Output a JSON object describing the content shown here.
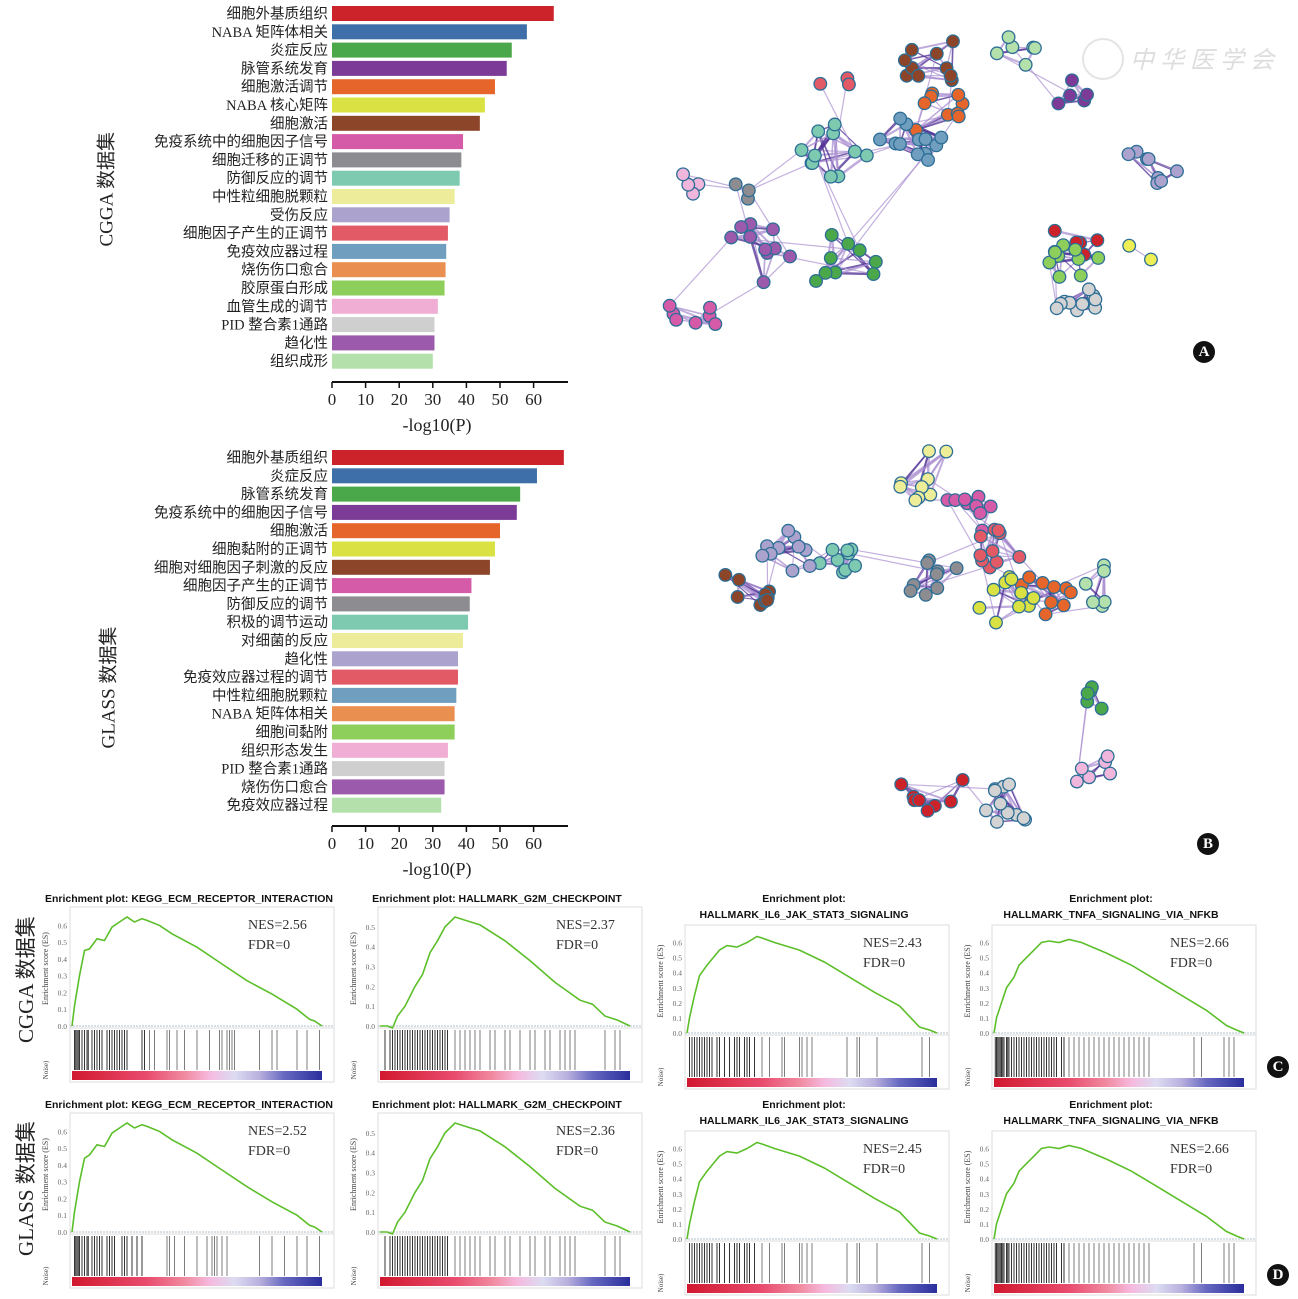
{
  "panels": {
    "A": "A",
    "B": "B",
    "C": "C",
    "D": "D"
  },
  "row_labels": {
    "cgga": "CGGA 数据集",
    "glass": "GLASS 数据集"
  },
  "watermark": "中华医学会",
  "colors": {
    "edge_light": "#a98fd0",
    "edge_dark": "#4a2a90",
    "node_stroke": "#2d6e96",
    "es_line": "#5cbf2a",
    "hit_line": "#111111"
  },
  "chart_data": [
    {
      "id": "bar-cgga",
      "type": "bar",
      "orientation": "horizontal",
      "title": "",
      "xlabel": "-log10(P)",
      "ylabel": "CGGA 数据集",
      "xlim": [
        0,
        68
      ],
      "xticks": [
        0,
        10,
        20,
        30,
        40,
        50,
        60
      ],
      "categories": [
        "细胞外基质组织",
        "NABA 矩阵体相关",
        "炎症反应",
        "脉管系统发育",
        "细胞激活调节",
        "NABA 核心矩阵",
        "细胞激活",
        "免疫系统中的细胞因子信号",
        "细胞迁移的正调节",
        "防御反应的调节",
        "中性粒细胞脱颗粒",
        "受伤反应",
        "细胞因子产生的正调节",
        "免疫效应器过程",
        "烧伤伤口愈合",
        "胶原蛋白形成",
        "血管生成的调节",
        "PID 整合素1通路",
        "趋化性",
        "组织成形"
      ],
      "values": [
        66,
        58,
        53.5,
        52,
        48.5,
        45.5,
        44,
        39,
        38.5,
        38,
        36.5,
        35,
        34.5,
        34,
        33.8,
        33.5,
        31.5,
        30.5,
        30.5,
        30
      ],
      "colors": [
        "#cc2229",
        "#3e6fa8",
        "#4ba84a",
        "#7b3b96",
        "#e5652a",
        "#d9e242",
        "#8c4528",
        "#d55ba8",
        "#8d8c90",
        "#7ecab1",
        "#ecec9a",
        "#aba3ce",
        "#e25a66",
        "#6f9ebf",
        "#e98f50",
        "#8ecf5c",
        "#f0aed4",
        "#cfcfcf",
        "#9b5aab",
        "#b4e0ab"
      ]
    },
    {
      "id": "bar-glass",
      "type": "bar",
      "orientation": "horizontal",
      "title": "",
      "xlabel": "-log10(P)",
      "ylabel": "GLASS 数据集",
      "xlim": [
        0,
        68
      ],
      "xticks": [
        0,
        10,
        20,
        30,
        40,
        50,
        60
      ],
      "categories": [
        "细胞外基质组织",
        "炎症反应",
        "脉管系统发育",
        "免疫系统中的细胞因子信号",
        "细胞激活",
        "细胞黏附的正调节",
        "细胞对细胞因子刺激的反应",
        "细胞因子产生的正调节",
        "防御反应的调节",
        "积极的调节运动",
        "对细菌的反应",
        "趋化性",
        "免疫效应器过程的调节",
        "中性粒细胞脱颗粒",
        "NABA 矩阵体相关",
        "细胞间黏附",
        "组织形态发生",
        "PID 整合素1通路",
        "烧伤伤口愈合",
        "免疫效应器过程"
      ],
      "values": [
        69,
        61,
        56,
        55,
        50,
        48.5,
        47,
        41.5,
        41,
        40.5,
        39,
        37.5,
        37.5,
        37,
        36.5,
        36.5,
        34.5,
        33.5,
        33.5,
        32.5
      ],
      "colors": [
        "#cc2229",
        "#3e6fa8",
        "#4ba84a",
        "#7b3b96",
        "#e5652a",
        "#d9e242",
        "#8c4528",
        "#d55ba8",
        "#8d8c90",
        "#7ecab1",
        "#ecec9a",
        "#aba3ce",
        "#e25a66",
        "#6f9ebf",
        "#e98f50",
        "#8ecf5c",
        "#f0aed4",
        "#cfcfcf",
        "#9b5aab",
        "#b4e0ab"
      ]
    },
    {
      "id": "gsea-cgga-ecm",
      "type": "line",
      "row": "cgga",
      "title_lines": [
        "Enrichment plot: KEGG_ECM_RECEPTOR_INTERACTION"
      ],
      "ylabel": "Enrichment score (ES)",
      "bottom_label": "Noise)",
      "ylim": [
        0,
        0.65
      ],
      "yticks": [
        "0.0",
        "0.1",
        "0.2",
        "0.3",
        "0.4",
        "0.5",
        "0.6"
      ],
      "annotation": {
        "nes": "NES=2.56",
        "fdr": "FDR=0"
      },
      "x": [
        0,
        0.01,
        0.03,
        0.05,
        0.07,
        0.1,
        0.13,
        0.16,
        0.19,
        0.22,
        0.25,
        0.28,
        0.3,
        0.35,
        0.4,
        0.5,
        0.6,
        0.7,
        0.8,
        0.9,
        0.95,
        0.97,
        1.0
      ],
      "es": [
        0,
        0.12,
        0.3,
        0.45,
        0.46,
        0.52,
        0.51,
        0.59,
        0.62,
        0.65,
        0.62,
        0.64,
        0.63,
        0.6,
        0.55,
        0.47,
        0.37,
        0.27,
        0.19,
        0.1,
        0.04,
        0.03,
        0
      ],
      "hits": [
        0.01,
        0.015,
        0.02,
        0.025,
        0.03,
        0.04,
        0.05,
        0.06,
        0.065,
        0.08,
        0.09,
        0.1,
        0.11,
        0.12,
        0.14,
        0.15,
        0.16,
        0.17,
        0.18,
        0.19,
        0.2,
        0.21,
        0.22,
        0.28,
        0.29,
        0.31,
        0.33,
        0.38,
        0.39,
        0.42,
        0.45,
        0.5,
        0.55,
        0.59,
        0.6,
        0.62,
        0.63,
        0.64,
        0.65,
        0.75,
        0.8,
        0.82,
        0.9,
        0.94,
        0.99
      ]
    },
    {
      "id": "gsea-cgga-g2m",
      "type": "line",
      "row": "cgga",
      "title_lines": [
        "Enrichment plot: HALLMARK_G2M_CHECKPOINT"
      ],
      "ylabel": "Enrichment score (ES)",
      "bottom_label": "Noise)",
      "ylim": [
        0,
        0.55
      ],
      "yticks": [
        "0.0",
        "0.1",
        "0.2",
        "0.3",
        "0.4",
        "0.5"
      ],
      "annotation": {
        "nes": "NES=2.37",
        "fdr": "FDR=0"
      },
      "x": [
        0,
        0.03,
        0.05,
        0.07,
        0.1,
        0.14,
        0.17,
        0.2,
        0.23,
        0.26,
        0.3,
        0.35,
        0.4,
        0.5,
        0.6,
        0.7,
        0.8,
        0.85,
        0.9,
        0.95,
        1.0
      ],
      "es": [
        0,
        0,
        -0.01,
        0.05,
        0.1,
        0.2,
        0.26,
        0.37,
        0.43,
        0.5,
        0.55,
        0.53,
        0.51,
        0.43,
        0.33,
        0.22,
        0.13,
        0.11,
        0.05,
        0.03,
        0
      ],
      "hits": [
        0.02,
        0.04,
        0.05,
        0.06,
        0.07,
        0.08,
        0.09,
        0.1,
        0.11,
        0.12,
        0.13,
        0.14,
        0.15,
        0.16,
        0.17,
        0.18,
        0.19,
        0.2,
        0.21,
        0.22,
        0.23,
        0.24,
        0.25,
        0.26,
        0.27,
        0.3,
        0.32,
        0.34,
        0.36,
        0.38,
        0.4,
        0.44,
        0.46,
        0.5,
        0.52,
        0.56,
        0.6,
        0.62,
        0.66,
        0.68,
        0.72,
        0.74,
        0.76,
        0.78,
        0.9,
        0.94,
        0.96
      ]
    },
    {
      "id": "gsea-cgga-il6",
      "type": "line",
      "row": "cgga",
      "title_lines": [
        "Enrichment plot:",
        "HALLMARK_IL6_JAK_STAT3_SIGNALING"
      ],
      "ylabel": "Enrichment score (ES)",
      "bottom_label": "Noise)",
      "ylim": [
        0,
        0.65
      ],
      "yticks": [
        "0.0",
        "0.1",
        "0.2",
        "0.3",
        "0.4",
        "0.5",
        "0.6"
      ],
      "annotation": {
        "nes": "NES=2.43",
        "fdr": "FDR=0"
      },
      "x": [
        0,
        0.01,
        0.03,
        0.05,
        0.08,
        0.1,
        0.13,
        0.16,
        0.2,
        0.24,
        0.28,
        0.3,
        0.35,
        0.45,
        0.55,
        0.65,
        0.75,
        0.85,
        0.93,
        0.97,
        1.0
      ],
      "es": [
        0,
        0.1,
        0.25,
        0.38,
        0.45,
        0.49,
        0.55,
        0.58,
        0.57,
        0.6,
        0.64,
        0.63,
        0.6,
        0.55,
        0.47,
        0.37,
        0.27,
        0.18,
        0.04,
        0.02,
        0
      ],
      "hits": [
        0.01,
        0.02,
        0.03,
        0.04,
        0.05,
        0.06,
        0.07,
        0.08,
        0.09,
        0.1,
        0.12,
        0.13,
        0.15,
        0.17,
        0.19,
        0.2,
        0.21,
        0.23,
        0.24,
        0.25,
        0.27,
        0.3,
        0.33,
        0.38,
        0.39,
        0.45,
        0.46,
        0.48,
        0.5,
        0.64,
        0.68,
        0.69,
        0.76,
        0.94,
        0.97
      ]
    },
    {
      "id": "gsea-cgga-tnfa",
      "type": "line",
      "row": "cgga",
      "title_lines": [
        "Enrichment plot:",
        "HALLMARK_TNFA_SIGNALING_VIA_NFKB"
      ],
      "ylabel": "Enrichment score (ES)",
      "bottom_label": "Noise)",
      "ylim": [
        0,
        0.65
      ],
      "yticks": [
        "0.0",
        "0.1",
        "0.2",
        "0.3",
        "0.4",
        "0.5",
        "0.6"
      ],
      "annotation": {
        "nes": "NES=2.66",
        "fdr": "FDR=0"
      },
      "x": [
        0,
        0.01,
        0.03,
        0.05,
        0.08,
        0.1,
        0.13,
        0.16,
        0.19,
        0.22,
        0.26,
        0.3,
        0.35,
        0.45,
        0.55,
        0.65,
        0.75,
        0.85,
        0.93,
        0.97,
        1.0
      ],
      "es": [
        0,
        0.1,
        0.2,
        0.3,
        0.37,
        0.45,
        0.5,
        0.55,
        0.6,
        0.61,
        0.6,
        0.62,
        0.6,
        0.53,
        0.45,
        0.35,
        0.25,
        0.15,
        0.05,
        0.02,
        0
      ],
      "hits": [
        0.005,
        0.01,
        0.015,
        0.02,
        0.025,
        0.03,
        0.035,
        0.04,
        0.05,
        0.055,
        0.06,
        0.07,
        0.08,
        0.09,
        0.1,
        0.11,
        0.12,
        0.13,
        0.14,
        0.15,
        0.16,
        0.17,
        0.18,
        0.19,
        0.2,
        0.21,
        0.22,
        0.23,
        0.24,
        0.25,
        0.27,
        0.28,
        0.3,
        0.32,
        0.34,
        0.36,
        0.38,
        0.4,
        0.42,
        0.44,
        0.46,
        0.48,
        0.5,
        0.52,
        0.54,
        0.56,
        0.58,
        0.6,
        0.62,
        0.8,
        0.83,
        0.92,
        0.94,
        0.96
      ]
    },
    {
      "id": "gsea-glass-ecm",
      "type": "line",
      "row": "glass",
      "title_lines": [
        "Enrichment plot: KEGG_ECM_RECEPTOR_INTERACTION"
      ],
      "ylabel": "Enrichment score (ES)",
      "bottom_label": "Noise)",
      "ylim": [
        0,
        0.65
      ],
      "yticks": [
        "0.0",
        "0.1",
        "0.2",
        "0.3",
        "0.4",
        "0.5",
        "0.6"
      ],
      "annotation": {
        "nes": "NES=2.52",
        "fdr": "FDR=0"
      },
      "x": [
        0,
        0.01,
        0.03,
        0.05,
        0.07,
        0.1,
        0.13,
        0.16,
        0.19,
        0.22,
        0.25,
        0.28,
        0.3,
        0.35,
        0.4,
        0.5,
        0.6,
        0.7,
        0.8,
        0.9,
        0.95,
        0.97,
        1.0
      ],
      "es": [
        0,
        0.12,
        0.3,
        0.44,
        0.46,
        0.52,
        0.51,
        0.59,
        0.62,
        0.65,
        0.62,
        0.64,
        0.63,
        0.6,
        0.55,
        0.47,
        0.37,
        0.27,
        0.18,
        0.1,
        0.04,
        0.03,
        0
      ],
      "hits": [
        0.01,
        0.015,
        0.02,
        0.025,
        0.03,
        0.04,
        0.05,
        0.06,
        0.065,
        0.08,
        0.09,
        0.1,
        0.11,
        0.12,
        0.14,
        0.15,
        0.16,
        0.17,
        0.2,
        0.21,
        0.22,
        0.24,
        0.26,
        0.28,
        0.38,
        0.39,
        0.41,
        0.45,
        0.5,
        0.54,
        0.56,
        0.57,
        0.58,
        0.6,
        0.62,
        0.75,
        0.8,
        0.85,
        0.9,
        0.94,
        0.99
      ]
    },
    {
      "id": "gsea-glass-g2m",
      "type": "line",
      "row": "glass",
      "title_lines": [
        "Enrichment plot: HALLMARK_G2M_CHECKPOINT"
      ],
      "ylabel": "Enrichment score (ES)",
      "bottom_label": "Noise)",
      "ylim": [
        0,
        0.55
      ],
      "yticks": [
        "0.0",
        "0.1",
        "0.2",
        "0.3",
        "0.4",
        "0.5"
      ],
      "annotation": {
        "nes": "NES=2.36",
        "fdr": "FDR=0"
      },
      "x": [
        0,
        0.03,
        0.05,
        0.07,
        0.1,
        0.14,
        0.17,
        0.2,
        0.23,
        0.26,
        0.3,
        0.35,
        0.4,
        0.5,
        0.6,
        0.7,
        0.8,
        0.85,
        0.9,
        0.95,
        1.0
      ],
      "es": [
        0,
        0,
        -0.01,
        0.05,
        0.1,
        0.2,
        0.26,
        0.37,
        0.43,
        0.5,
        0.55,
        0.53,
        0.51,
        0.43,
        0.33,
        0.22,
        0.13,
        0.11,
        0.05,
        0.03,
        0
      ],
      "hits": [
        0.02,
        0.04,
        0.05,
        0.06,
        0.07,
        0.08,
        0.09,
        0.1,
        0.11,
        0.12,
        0.13,
        0.14,
        0.15,
        0.16,
        0.17,
        0.18,
        0.19,
        0.2,
        0.21,
        0.22,
        0.23,
        0.24,
        0.25,
        0.26,
        0.27,
        0.3,
        0.32,
        0.34,
        0.36,
        0.38,
        0.4,
        0.44,
        0.46,
        0.5,
        0.52,
        0.56,
        0.6,
        0.62,
        0.66,
        0.68,
        0.72,
        0.74,
        0.76,
        0.78,
        0.9,
        0.94,
        0.96
      ]
    },
    {
      "id": "gsea-glass-il6",
      "type": "line",
      "row": "glass",
      "title_lines": [
        "Enrichment plot:",
        "HALLMARK_IL6_JAK_STAT3_SIGNALING"
      ],
      "ylabel": "Enrichment score (ES)",
      "bottom_label": "Noise)",
      "ylim": [
        0,
        0.65
      ],
      "yticks": [
        "0.0",
        "0.1",
        "0.2",
        "0.3",
        "0.4",
        "0.5",
        "0.6"
      ],
      "annotation": {
        "nes": "NES=2.45",
        "fdr": "FDR=0"
      },
      "x": [
        0,
        0.01,
        0.03,
        0.05,
        0.08,
        0.1,
        0.13,
        0.16,
        0.2,
        0.24,
        0.28,
        0.3,
        0.35,
        0.45,
        0.55,
        0.65,
        0.75,
        0.85,
        0.93,
        0.97,
        1.0
      ],
      "es": [
        0,
        0.1,
        0.25,
        0.38,
        0.45,
        0.49,
        0.55,
        0.58,
        0.57,
        0.6,
        0.64,
        0.63,
        0.6,
        0.55,
        0.47,
        0.37,
        0.27,
        0.18,
        0.04,
        0.02,
        0
      ],
      "hits": [
        0.01,
        0.02,
        0.03,
        0.04,
        0.05,
        0.06,
        0.07,
        0.08,
        0.09,
        0.1,
        0.12,
        0.13,
        0.15,
        0.17,
        0.19,
        0.2,
        0.21,
        0.23,
        0.24,
        0.25,
        0.27,
        0.3,
        0.33,
        0.38,
        0.39,
        0.45,
        0.46,
        0.48,
        0.5,
        0.64,
        0.68,
        0.69,
        0.76,
        0.94,
        0.97
      ]
    },
    {
      "id": "gsea-glass-tnfa",
      "type": "line",
      "row": "glass",
      "title_lines": [
        "Enrichment plot:",
        "HALLMARK_TNFA_SIGNALING_VIA_NFKB"
      ],
      "ylabel": "Enrichment score (ES)",
      "bottom_label": "Noise)",
      "ylim": [
        0,
        0.65
      ],
      "yticks": [
        "0.0",
        "0.1",
        "0.2",
        "0.3",
        "0.4",
        "0.5",
        "0.6"
      ],
      "annotation": {
        "nes": "NES=2.66",
        "fdr": "FDR=0"
      },
      "x": [
        0,
        0.01,
        0.03,
        0.05,
        0.08,
        0.1,
        0.13,
        0.16,
        0.19,
        0.22,
        0.26,
        0.3,
        0.35,
        0.45,
        0.55,
        0.65,
        0.75,
        0.85,
        0.93,
        0.97,
        1.0
      ],
      "es": [
        0,
        0.1,
        0.2,
        0.3,
        0.37,
        0.45,
        0.5,
        0.55,
        0.6,
        0.61,
        0.6,
        0.62,
        0.6,
        0.53,
        0.45,
        0.35,
        0.25,
        0.15,
        0.05,
        0.02,
        0
      ],
      "hits": [
        0.005,
        0.01,
        0.015,
        0.02,
        0.025,
        0.03,
        0.035,
        0.04,
        0.05,
        0.055,
        0.06,
        0.07,
        0.08,
        0.09,
        0.1,
        0.11,
        0.12,
        0.13,
        0.14,
        0.15,
        0.16,
        0.17,
        0.18,
        0.19,
        0.2,
        0.21,
        0.22,
        0.23,
        0.24,
        0.25,
        0.27,
        0.28,
        0.3,
        0.32,
        0.34,
        0.36,
        0.38,
        0.4,
        0.42,
        0.44,
        0.46,
        0.48,
        0.5,
        0.52,
        0.54,
        0.56,
        0.58,
        0.6,
        0.62,
        0.8,
        0.83,
        0.92,
        0.94,
        0.96
      ]
    }
  ],
  "network_A": {
    "clusters": [
      {
        "name": "cluster-brown",
        "color": "#8c4528"
      },
      {
        "name": "cluster-orange",
        "color": "#e5652a"
      },
      {
        "name": "cluster-steelblue",
        "color": "#6f9ebf"
      },
      {
        "name": "cluster-teal",
        "color": "#7ecab1"
      },
      {
        "name": "cluster-pink-light",
        "color": "#f0b6dc"
      },
      {
        "name": "cluster-gray",
        "color": "#8d8c90"
      },
      {
        "name": "cluster-purple",
        "color": "#9b5aab"
      },
      {
        "name": "cluster-green",
        "color": "#4ba84a"
      },
      {
        "name": "cluster-magenta",
        "color": "#d55ba8"
      },
      {
        "name": "cluster-salmon",
        "color": "#e25a66"
      },
      {
        "name": "cluster-mint",
        "color": "#b4e0ab"
      },
      {
        "name": "cluster-violet",
        "color": "#7b3b96"
      },
      {
        "name": "cluster-lavender",
        "color": "#aba3ce"
      },
      {
        "name": "cluster-red",
        "color": "#cc2229"
      },
      {
        "name": "cluster-lime",
        "color": "#8ecf5c"
      },
      {
        "name": "cluster-silver",
        "color": "#d3d3d3"
      },
      {
        "name": "cluster-yellow",
        "color": "#eeee55"
      }
    ]
  },
  "network_B": {
    "clusters": [
      {
        "name": "cluster-yellow",
        "color": "#eeee99"
      },
      {
        "name": "cluster-magenta",
        "color": "#d55ba8"
      },
      {
        "name": "cluster-salmon",
        "color": "#e25a66"
      },
      {
        "name": "cluster-orange",
        "color": "#e5652a"
      },
      {
        "name": "cluster-lime-yellow",
        "color": "#d9e242"
      },
      {
        "name": "cluster-gray",
        "color": "#8d8c90"
      },
      {
        "name": "cluster-teal",
        "color": "#7ecab1"
      },
      {
        "name": "cluster-lavender",
        "color": "#aba3ce"
      },
      {
        "name": "cluster-brown",
        "color": "#8c4528"
      },
      {
        "name": "cluster-mint",
        "color": "#b4e0ab"
      },
      {
        "name": "cluster-red",
        "color": "#cc2229"
      },
      {
        "name": "cluster-silver",
        "color": "#d3d3d3"
      },
      {
        "name": "cluster-green",
        "color": "#4ba84a"
      },
      {
        "name": "cluster-pink-light",
        "color": "#f0b6dc"
      }
    ]
  }
}
